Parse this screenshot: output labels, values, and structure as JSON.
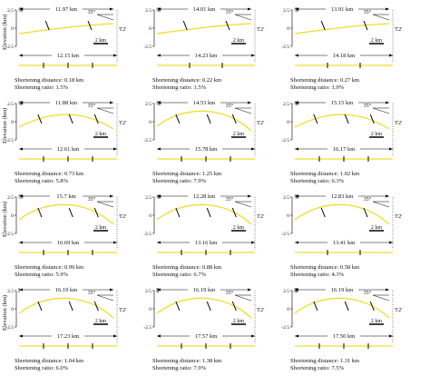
{
  "axis": {
    "ylabel": "Elevation (km)",
    "ticks": [
      "2.5",
      "0",
      "-2.5"
    ]
  },
  "labels": {
    "shortening_distance_prefix": "Shortening distance: ",
    "shortening_ratio_prefix": "Shortening ratio: ",
    "scale_bar": "2 km",
    "dip_angle": "35°",
    "section_end": "T2'"
  },
  "colors": {
    "profile_line": "#f2dc2b",
    "fault": "#000000",
    "text": "#111111"
  },
  "panels": [
    {
      "id": "①",
      "top_length": "11.97 km",
      "bottom_length": "12.15 km",
      "shortening_distance": "0.18 km",
      "shortening_ratio": "1.5%",
      "fault_count": 2,
      "bottom_tick_count": 3,
      "profile_shape": "low-flat"
    },
    {
      "id": "②",
      "top_length": "14.01 km",
      "bottom_length": "14.23 km",
      "shortening_distance": "0.22 km",
      "shortening_ratio": "1.5%",
      "fault_count": 2,
      "bottom_tick_count": 2,
      "profile_shape": "low-flat"
    },
    {
      "id": "③",
      "top_length": "13.91 km",
      "bottom_length": "14.18 km",
      "shortening_distance": "0.27 km",
      "shortening_ratio": "1.9%",
      "fault_count": 2,
      "bottom_tick_count": 2,
      "profile_shape": "low-flat"
    },
    {
      "id": "④",
      "top_length": "11.88 km",
      "bottom_length": "12.61 km",
      "shortening_distance": "0.73 km",
      "shortening_ratio": "5.8%",
      "fault_count": 3,
      "bottom_tick_count": 3,
      "profile_shape": "gentle-arch"
    },
    {
      "id": "⑤",
      "top_length": "14.53 km",
      "bottom_length": "15.78 km",
      "shortening_distance": "1.25 km",
      "shortening_ratio": "7.9%",
      "fault_count": 3,
      "bottom_tick_count": 3,
      "profile_shape": "arch"
    },
    {
      "id": "⑥",
      "top_length": "15.15 km",
      "bottom_length": "16.17 km",
      "shortening_distance": "1.02 km",
      "shortening_ratio": "6.3%",
      "fault_count": 3,
      "bottom_tick_count": 3,
      "profile_shape": "gentle-arch"
    },
    {
      "id": "⑦",
      "top_length": "15.7 km",
      "bottom_length": "16.69 km",
      "shortening_distance": "0.99 km",
      "shortening_ratio": "5.9%",
      "fault_count": 3,
      "bottom_tick_count": 3,
      "profile_shape": "arch"
    },
    {
      "id": "⑧",
      "top_length": "12.28 km",
      "bottom_length": "13.16 km",
      "shortening_distance": "0.88 km",
      "shortening_ratio": "6.7%",
      "fault_count": 3,
      "bottom_tick_count": 3,
      "profile_shape": "arch"
    },
    {
      "id": "⑨",
      "top_length": "12.83 km",
      "bottom_length": "13.41 km",
      "shortening_distance": "0.58 km",
      "shortening_ratio": "4.3%",
      "fault_count": 2,
      "bottom_tick_count": 2,
      "profile_shape": "arch"
    },
    {
      "id": "Ⅰ",
      "top_length": "16.19 km",
      "bottom_length": "17.23 km",
      "shortening_distance": "1.04 km",
      "shortening_ratio": "6.0%",
      "fault_count": 3,
      "bottom_tick_count": 3,
      "profile_shape": "arch"
    },
    {
      "id": "Ⅱ",
      "top_length": "16.19 km",
      "bottom_length": "17.57 km",
      "shortening_distance": "1.38 km",
      "shortening_ratio": "7.9%",
      "fault_count": 3,
      "bottom_tick_count": 3,
      "profile_shape": "arch"
    },
    {
      "id": "Ⅲ",
      "top_length": "16.19 km",
      "bottom_length": "17.50 km",
      "shortening_distance": "1.31 km",
      "shortening_ratio": "7.5%",
      "fault_count": 3,
      "bottom_tick_count": 3,
      "profile_shape": "arch"
    }
  ]
}
